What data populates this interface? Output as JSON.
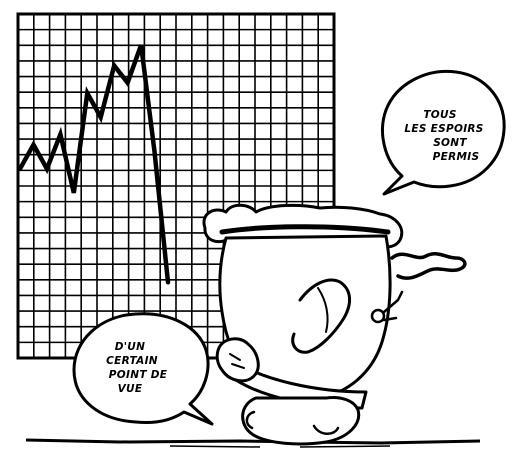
{
  "colors": {
    "ink": "#000000",
    "paper": "#ffffff"
  },
  "chart_data": {
    "type": "line",
    "title": "",
    "xlabel": "",
    "ylabel": "",
    "grid": true,
    "x": [
      0,
      1,
      2,
      3,
      4,
      5,
      6,
      7,
      8,
      9,
      10,
      11
    ],
    "values": [
      55,
      62,
      55,
      65,
      48,
      77,
      70,
      85,
      80,
      91,
      60,
      22
    ],
    "ylim": [
      0,
      100
    ]
  },
  "speech_bubbles": {
    "right": {
      "lines": [
        "TOUS",
        "LES ESPOIRS",
        "SONT",
        "PERMIS"
      ]
    },
    "left": {
      "lines": [
        "D'UN",
        "CERTAIN",
        "POINT DE",
        "VUE"
      ]
    }
  }
}
